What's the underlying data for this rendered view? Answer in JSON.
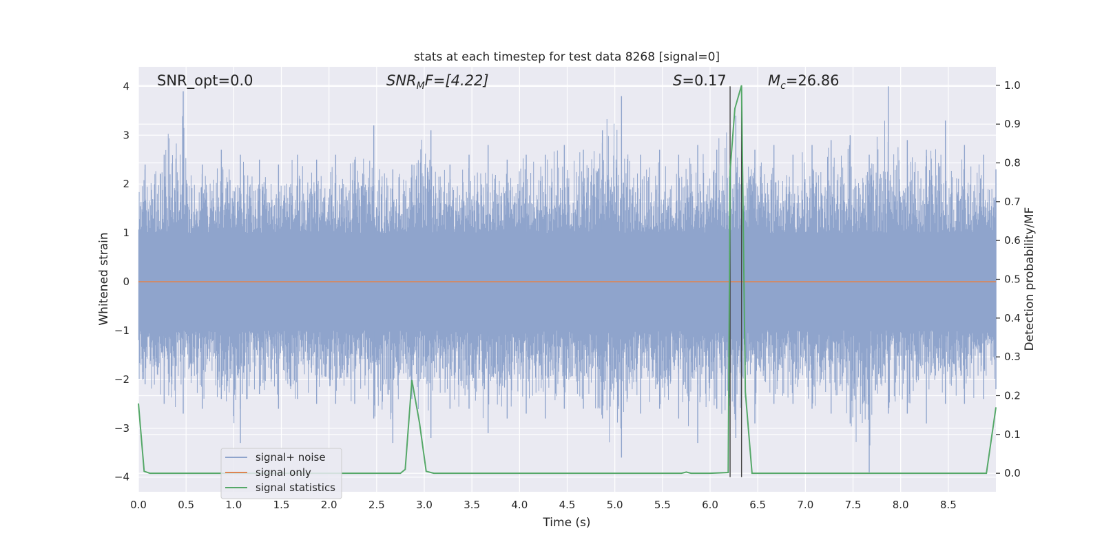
{
  "chart_data": {
    "type": "line",
    "title": "stats at each timestep for test data 8268 [signal=0]",
    "xlabel": "Time (s)",
    "ylabel": "Whitened strain",
    "y2label": "Detection probability/MF",
    "xlim": [
      0.0,
      9.0
    ],
    "ylim": [
      -4.3,
      4.4
    ],
    "y2lim": [
      -0.0477,
      1.0477
    ],
    "x_ticks": [
      "0.0",
      "0.5",
      "1.0",
      "1.5",
      "2.0",
      "2.5",
      "3.0",
      "3.5",
      "4.0",
      "4.5",
      "5.0",
      "5.5",
      "6.0",
      "6.5",
      "7.0",
      "7.5",
      "8.0",
      "8.5"
    ],
    "y_ticks": [
      "4",
      "3",
      "2",
      "1",
      "0",
      "−1",
      "−2",
      "−3",
      "−4"
    ],
    "y2_ticks": [
      "1.0",
      "0.9",
      "0.8",
      "0.7",
      "0.6",
      "0.5",
      "0.4",
      "0.3",
      "0.2",
      "0.1",
      "0.0"
    ],
    "grid": true,
    "legend_position": "lower-left",
    "annotations": {
      "snr_opt": "SNR_opt=0.0",
      "snr_mf_main": "SNR",
      "snr_mf_sub": "M",
      "snr_mf_tail": "F=[4.22]",
      "s_main": "S",
      "s_tail": "=0.17",
      "mc_main": "M",
      "mc_sub": "c",
      "mc_tail": "=26.86"
    },
    "vertical_lines_x": [
      6.21,
      6.33
    ],
    "noise_envelope": {
      "x": [
        0.0,
        0.2,
        0.4,
        0.6,
        0.8,
        1.0,
        1.2,
        1.4,
        1.6,
        1.8,
        2.0,
        2.2,
        2.4,
        2.6,
        2.8,
        3.0,
        3.2,
        3.4,
        3.6,
        3.8,
        4.0,
        4.2,
        4.4,
        4.6,
        4.8,
        5.0,
        5.2,
        5.4,
        5.6,
        5.8,
        6.0,
        6.2,
        6.4,
        6.6,
        6.8,
        7.0,
        7.2,
        7.4,
        7.6,
        7.8,
        8.0,
        8.2,
        8.4,
        8.6,
        8.8,
        9.0
      ],
      "upper": [
        2.4,
        2.6,
        3.9,
        2.4,
        2.7,
        2.6,
        2.5,
        2.4,
        2.6,
        2.5,
        2.6,
        2.5,
        3.2,
        2.3,
        2.4,
        3.1,
        2.4,
        2.6,
        2.8,
        2.5,
        2.6,
        2.6,
        2.8,
        2.7,
        3.1,
        3.8,
        2.6,
        2.7,
        2.6,
        2.8,
        2.7,
        3.4,
        2.7,
        2.8,
        2.6,
        2.8,
        2.9,
        3.0,
        2.6,
        4.0,
        2.9,
        2.7,
        3.3,
        2.8,
        2.6,
        2.3
      ],
      "lower": [
        -2.1,
        -2.5,
        -2.7,
        -2.6,
        -2.4,
        -3.3,
        -2.3,
        -2.6,
        -2.4,
        -2.5,
        -2.5,
        -2.5,
        -2.8,
        -3.3,
        -2.4,
        -3.2,
        -2.6,
        -2.6,
        -3.1,
        -2.8,
        -2.7,
        -2.8,
        -2.6,
        -2.6,
        -2.8,
        -3.6,
        -2.7,
        -2.6,
        -2.8,
        -3.3,
        -2.6,
        -3.2,
        -2.9,
        -2.5,
        -2.5,
        -2.6,
        -2.7,
        -2.9,
        -3.9,
        -2.7,
        -2.7,
        -2.9,
        -2.5,
        -2.5,
        -2.4,
        -2.2
      ]
    },
    "series": [
      {
        "name": "signal+ noise",
        "color": "#8fa4cc",
        "type": "strain"
      },
      {
        "name": "signal only",
        "color": "#dd8452",
        "x": [
          0.0,
          9.0
        ],
        "y": [
          0.0,
          0.0
        ]
      },
      {
        "name": "signal statistics",
        "color": "#55a868",
        "axis": "right",
        "x": [
          0.0,
          0.06,
          0.12,
          0.2,
          0.5,
          1.0,
          1.5,
          2.0,
          2.5,
          2.75,
          2.8,
          2.87,
          2.95,
          3.02,
          3.1,
          3.5,
          4.0,
          4.5,
          5.0,
          5.5,
          5.7,
          5.75,
          5.8,
          6.0,
          6.19,
          6.21,
          6.26,
          6.33,
          6.37,
          6.44,
          6.5,
          7.0,
          7.5,
          8.0,
          8.5,
          8.9,
          9.0
        ],
        "y": [
          0.18,
          0.005,
          0.0,
          0.0,
          0.0,
          0.0,
          0.0,
          0.0,
          0.0,
          0.0,
          0.01,
          0.24,
          0.13,
          0.005,
          0.0,
          0.0,
          0.0,
          0.0,
          0.0,
          0.0,
          0.0,
          0.003,
          0.0,
          0.0,
          0.002,
          0.78,
          0.94,
          1.0,
          0.21,
          0.0,
          0.0,
          0.0,
          0.0,
          0.0,
          0.0,
          0.0,
          0.17
        ]
      }
    ]
  }
}
